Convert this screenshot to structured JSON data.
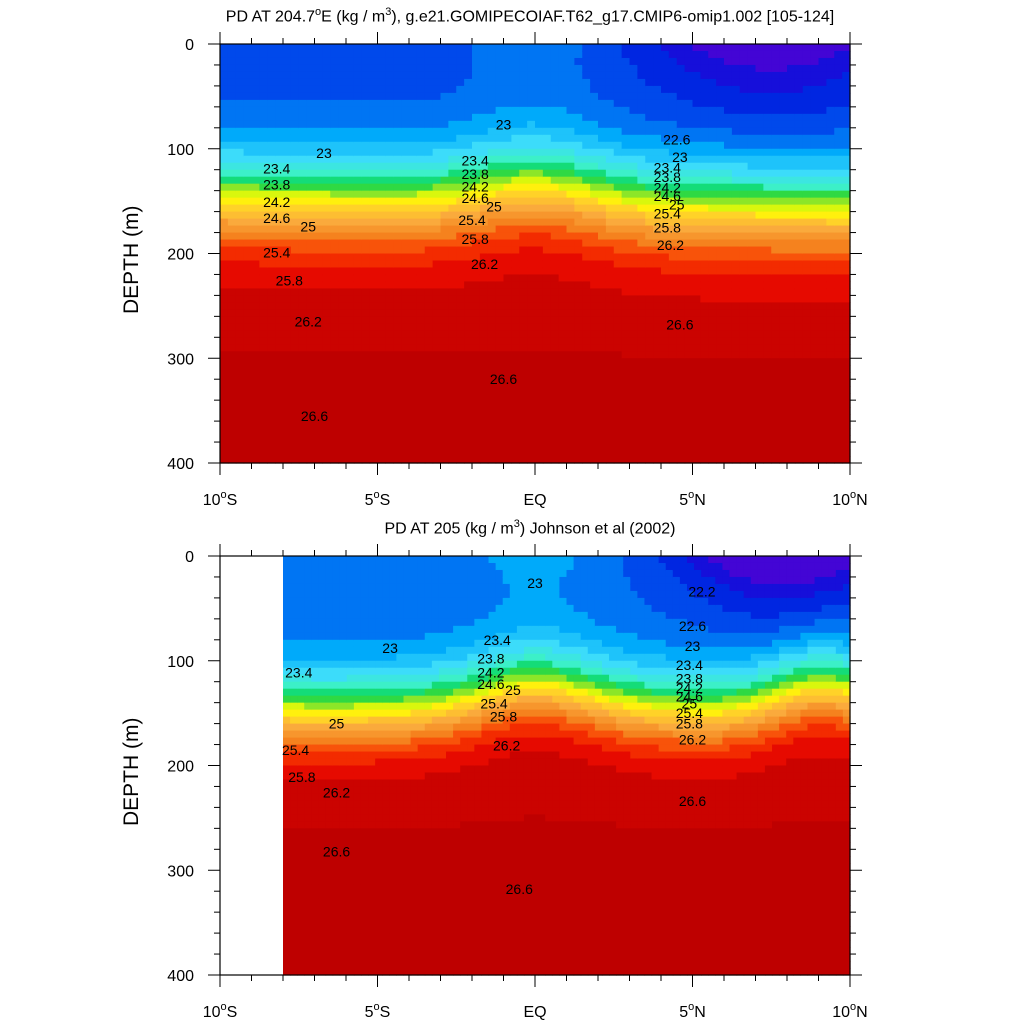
{
  "chart_data": [
    {
      "type": "contour",
      "title_main": "PD AT 204.7",
      "title_deg": "o",
      "title_after_deg": "E (kg / m",
      "title_sup": "3",
      "title_rest": "), g.e21.GOMIPECOIAF.T62_g17.CMIP6-omip1.002 [105-124]",
      "ylabel": "DEPTH (m)",
      "xlim": [
        -10,
        10
      ],
      "ylim": [
        0,
        400
      ],
      "yreversed": true,
      "yticks": [
        0,
        100,
        200,
        300,
        400
      ],
      "xticks": [
        {
          "value": -10,
          "num": "10",
          "deg": "o",
          "hemi": "S"
        },
        {
          "value": -5,
          "num": "5",
          "deg": "o",
          "hemi": "S"
        },
        {
          "value": 0,
          "num": "EQ",
          "deg": "",
          "hemi": ""
        },
        {
          "value": 5,
          "num": "5",
          "deg": "o",
          "hemi": "N"
        },
        {
          "value": 10,
          "num": "10",
          "deg": "o",
          "hemi": "N"
        }
      ],
      "data_xrange": [
        -10,
        10
      ],
      "levels": [
        22.2,
        22.4,
        22.6,
        22.8,
        23.0,
        23.2,
        23.4,
        23.6,
        23.8,
        24.0,
        24.2,
        24.4,
        24.6,
        24.8,
        25.0,
        25.2,
        25.4,
        25.6,
        25.8,
        26.0,
        26.2,
        26.4,
        26.6,
        26.8
      ],
      "contour_labels": [
        {
          "x": -6.7,
          "y": 104,
          "text": "23"
        },
        {
          "x": -8.2,
          "y": 119,
          "text": "23.4"
        },
        {
          "x": -8.2,
          "y": 134,
          "text": "23.8"
        },
        {
          "x": -8.2,
          "y": 151,
          "text": "24.2"
        },
        {
          "x": -8.2,
          "y": 166,
          "text": "24.6"
        },
        {
          "x": -7.2,
          "y": 174,
          "text": "25"
        },
        {
          "x": -8.2,
          "y": 199,
          "text": "25.4"
        },
        {
          "x": -7.8,
          "y": 226,
          "text": "25.8"
        },
        {
          "x": -7.2,
          "y": 265,
          "text": "26.2"
        },
        {
          "x": -7.0,
          "y": 355,
          "text": "26.6"
        },
        {
          "x": -1.0,
          "y": 77,
          "text": "23"
        },
        {
          "x": -1.9,
          "y": 111,
          "text": "23.4"
        },
        {
          "x": -1.9,
          "y": 124,
          "text": "23.8"
        },
        {
          "x": -1.9,
          "y": 136,
          "text": "24.2"
        },
        {
          "x": -1.9,
          "y": 147,
          "text": "24.6"
        },
        {
          "x": -1.3,
          "y": 155,
          "text": "25"
        },
        {
          "x": -2.0,
          "y": 168,
          "text": "25.4"
        },
        {
          "x": -1.9,
          "y": 186,
          "text": "25.8"
        },
        {
          "x": -1.6,
          "y": 210,
          "text": "26.2"
        },
        {
          "x": -1.0,
          "y": 320,
          "text": "26.6"
        },
        {
          "x": 4.5,
          "y": 91,
          "text": "22.6"
        },
        {
          "x": 4.6,
          "y": 108,
          "text": "23"
        },
        {
          "x": 4.2,
          "y": 118,
          "text": "23.4"
        },
        {
          "x": 4.2,
          "y": 127,
          "text": "23.8"
        },
        {
          "x": 4.2,
          "y": 137,
          "text": "24.2"
        },
        {
          "x": 4.2,
          "y": 145,
          "text": "24.6"
        },
        {
          "x": 4.5,
          "y": 153,
          "text": "25"
        },
        {
          "x": 4.2,
          "y": 162,
          "text": "25.4"
        },
        {
          "x": 4.2,
          "y": 175,
          "text": "25.8"
        },
        {
          "x": 4.3,
          "y": 192,
          "text": "26.2"
        },
        {
          "x": 4.6,
          "y": 268,
          "text": "26.6"
        }
      ]
    },
    {
      "type": "contour",
      "title_main": "PD AT 205 (kg / m",
      "title_deg": "",
      "title_after_deg": "",
      "title_sup": "3",
      "title_rest": ") Johnson et al (2002)",
      "ylabel": "DEPTH (m)",
      "xlim": [
        -10,
        10
      ],
      "ylim": [
        0,
        400
      ],
      "yreversed": true,
      "yticks": [
        0,
        100,
        200,
        300,
        400
      ],
      "xticks": [
        {
          "value": -10,
          "num": "10",
          "deg": "o",
          "hemi": "S"
        },
        {
          "value": -5,
          "num": "5",
          "deg": "o",
          "hemi": "S"
        },
        {
          "value": 0,
          "num": "EQ",
          "deg": "",
          "hemi": ""
        },
        {
          "value": 5,
          "num": "5",
          "deg": "o",
          "hemi": "N"
        },
        {
          "value": 10,
          "num": "10",
          "deg": "o",
          "hemi": "N"
        }
      ],
      "data_xrange": [
        -8,
        10
      ],
      "levels": [
        22.2,
        22.4,
        22.6,
        22.8,
        23.0,
        23.2,
        23.4,
        23.6,
        23.8,
        24.0,
        24.2,
        24.4,
        24.6,
        24.8,
        25.0,
        25.2,
        25.4,
        25.6,
        25.8,
        26.0,
        26.2,
        26.4,
        26.6,
        26.8
      ],
      "contour_labels": [
        {
          "x": -4.6,
          "y": 88,
          "text": "23"
        },
        {
          "x": -7.5,
          "y": 111,
          "text": "23.4"
        },
        {
          "x": -6.3,
          "y": 160,
          "text": "25"
        },
        {
          "x": -7.6,
          "y": 185,
          "text": "25.4"
        },
        {
          "x": -7.4,
          "y": 211,
          "text": "25.8"
        },
        {
          "x": -6.3,
          "y": 226,
          "text": "26.2"
        },
        {
          "x": -6.3,
          "y": 282,
          "text": "26.6"
        },
        {
          "x": 0.0,
          "y": 26,
          "text": "23"
        },
        {
          "x": -1.2,
          "y": 80,
          "text": "23.4"
        },
        {
          "x": -1.4,
          "y": 98,
          "text": "23.8"
        },
        {
          "x": -1.4,
          "y": 111,
          "text": "24.2"
        },
        {
          "x": -1.4,
          "y": 122,
          "text": "24.6"
        },
        {
          "x": -0.7,
          "y": 128,
          "text": "25"
        },
        {
          "x": -1.3,
          "y": 141,
          "text": "25.4"
        },
        {
          "x": -1.0,
          "y": 153,
          "text": "25.8"
        },
        {
          "x": -0.9,
          "y": 181,
          "text": "26.2"
        },
        {
          "x": -0.5,
          "y": 318,
          "text": "26.6"
        },
        {
          "x": 5.3,
          "y": 34,
          "text": "22.2"
        },
        {
          "x": 5.0,
          "y": 67,
          "text": "22.6"
        },
        {
          "x": 5.0,
          "y": 86,
          "text": "23"
        },
        {
          "x": 4.9,
          "y": 104,
          "text": "23.4"
        },
        {
          "x": 4.9,
          "y": 117,
          "text": "23.8"
        },
        {
          "x": 4.9,
          "y": 126,
          "text": "24.2"
        },
        {
          "x": 4.9,
          "y": 134,
          "text": "24.6"
        },
        {
          "x": 4.9,
          "y": 141,
          "text": "25"
        },
        {
          "x": 4.9,
          "y": 150,
          "text": "25.4"
        },
        {
          "x": 4.9,
          "y": 160,
          "text": "25.8"
        },
        {
          "x": 5.0,
          "y": 175,
          "text": "26.2"
        },
        {
          "x": 5.0,
          "y": 234,
          "text": "26.6"
        }
      ]
    }
  ]
}
